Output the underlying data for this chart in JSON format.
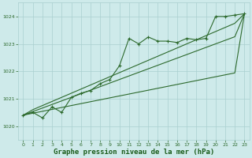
{
  "bg_color": "#ceeaea",
  "grid_color": "#aacfcf",
  "line_color": "#2d6a2d",
  "marker_color": "#2d6a2d",
  "xlabel": "Graphe pression niveau de la mer (hPa)",
  "xlabel_color": "#1a5c1a",
  "xlabel_fontsize": 6.5,
  "ylim": [
    1019.5,
    1024.5
  ],
  "xlim": [
    -0.5,
    23.5
  ],
  "yticks": [
    1020,
    1021,
    1022,
    1023,
    1024
  ],
  "xticks": [
    0,
    1,
    2,
    3,
    4,
    5,
    6,
    7,
    8,
    9,
    10,
    11,
    12,
    13,
    14,
    15,
    16,
    17,
    18,
    19,
    20,
    21,
    22,
    23
  ],
  "series": {
    "main": [
      1020.4,
      1020.5,
      1020.3,
      1020.7,
      1020.5,
      1021.05,
      1021.2,
      1021.3,
      1021.55,
      1021.7,
      1022.2,
      1023.2,
      1023.0,
      1023.25,
      1023.1,
      1023.1,
      1023.05,
      1023.2,
      1023.15,
      1023.2,
      1024.0,
      1024.0,
      1024.05,
      1024.1
    ],
    "upper": [
      1020.4,
      1020.6,
      1020.75,
      1020.9,
      1021.05,
      1021.2,
      1021.35,
      1021.5,
      1021.65,
      1021.8,
      1021.95,
      1022.1,
      1022.25,
      1022.4,
      1022.55,
      1022.7,
      1022.85,
      1023.0,
      1023.15,
      1023.3,
      1023.45,
      1023.6,
      1023.75,
      1024.1
    ],
    "middle": [
      1020.4,
      1020.53,
      1020.66,
      1020.79,
      1020.92,
      1021.05,
      1021.18,
      1021.31,
      1021.44,
      1021.57,
      1021.7,
      1021.83,
      1021.96,
      1022.09,
      1022.22,
      1022.35,
      1022.48,
      1022.61,
      1022.74,
      1022.87,
      1023.0,
      1023.13,
      1023.26,
      1024.1
    ],
    "lower": [
      1020.4,
      1020.47,
      1020.54,
      1020.61,
      1020.68,
      1020.75,
      1020.82,
      1020.89,
      1020.96,
      1021.03,
      1021.1,
      1021.17,
      1021.24,
      1021.31,
      1021.38,
      1021.45,
      1021.52,
      1021.59,
      1021.66,
      1021.73,
      1021.8,
      1021.87,
      1021.94,
      1024.1
    ]
  }
}
